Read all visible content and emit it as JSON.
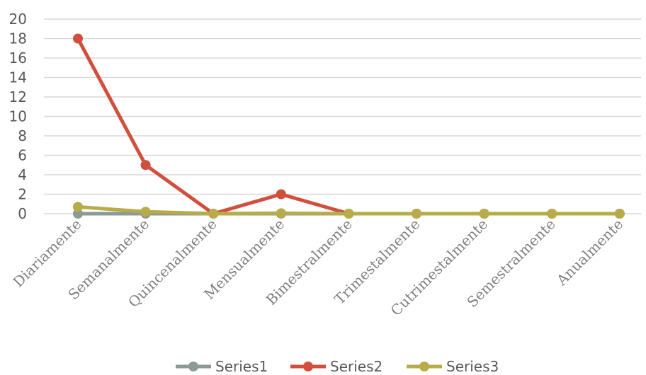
{
  "chart_data": {
    "type": "line",
    "categories": [
      "Diariamente",
      "Semanalmente",
      "Quincenalmente",
      "Mensualmente",
      "Bimestralmente",
      "Trimestalmente",
      "Cutrimestalmente",
      "Semestralmente",
      "Anualmente"
    ],
    "series": [
      {
        "name": "Series1",
        "color": "#8a9a94",
        "values": [
          0,
          0,
          0,
          0,
          0,
          0,
          0,
          0,
          0
        ]
      },
      {
        "name": "Series2",
        "color": "#d14f3c",
        "values": [
          18,
          5,
          0,
          2,
          0,
          0,
          0,
          0,
          0
        ]
      },
      {
        "name": "Series3",
        "color": "#b8ab4a",
        "values": [
          0.7,
          0.2,
          0,
          0.05,
          0,
          0,
          0,
          0,
          0
        ]
      }
    ],
    "ylim": [
      0,
      20
    ],
    "yticks": [
      0,
      2,
      4,
      6,
      8,
      10,
      12,
      14,
      16,
      18,
      20
    ],
    "grid": true,
    "legend_position": "bottom",
    "title": "",
    "xlabel": "",
    "ylabel": ""
  }
}
